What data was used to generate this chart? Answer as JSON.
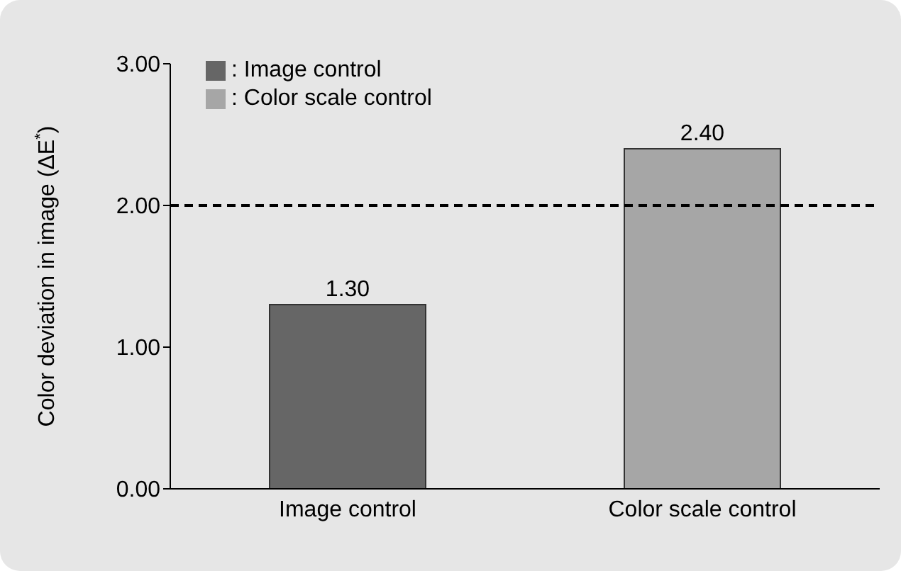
{
  "chart_data": {
    "type": "bar",
    "ylabel": "Color deviation in image (ΔE$^{*}$)",
    "categories": [
      "Image control",
      "Color scale control"
    ],
    "series": [
      {
        "name": ": Image control",
        "color": "#666666",
        "values": [
          1.3,
          null
        ],
        "value_labels": [
          "1.30",
          null
        ]
      },
      {
        "name": ": Color scale control",
        "color": "#a6a6a6",
        "values": [
          null,
          2.4
        ],
        "value_labels": [
          null,
          "2.40"
        ]
      }
    ],
    "ylim": [
      0,
      3
    ],
    "yticks": [
      {
        "value": 0,
        "label": "0.00"
      },
      {
        "value": 1,
        "label": "1.00"
      },
      {
        "value": 2,
        "label": "2.00"
      },
      {
        "value": 3,
        "label": "3.00"
      }
    ],
    "ref_lines": [
      {
        "axis": "y",
        "value": 2,
        "line_style": "dashed",
        "color": "#000000"
      }
    ],
    "legend": "top left"
  }
}
